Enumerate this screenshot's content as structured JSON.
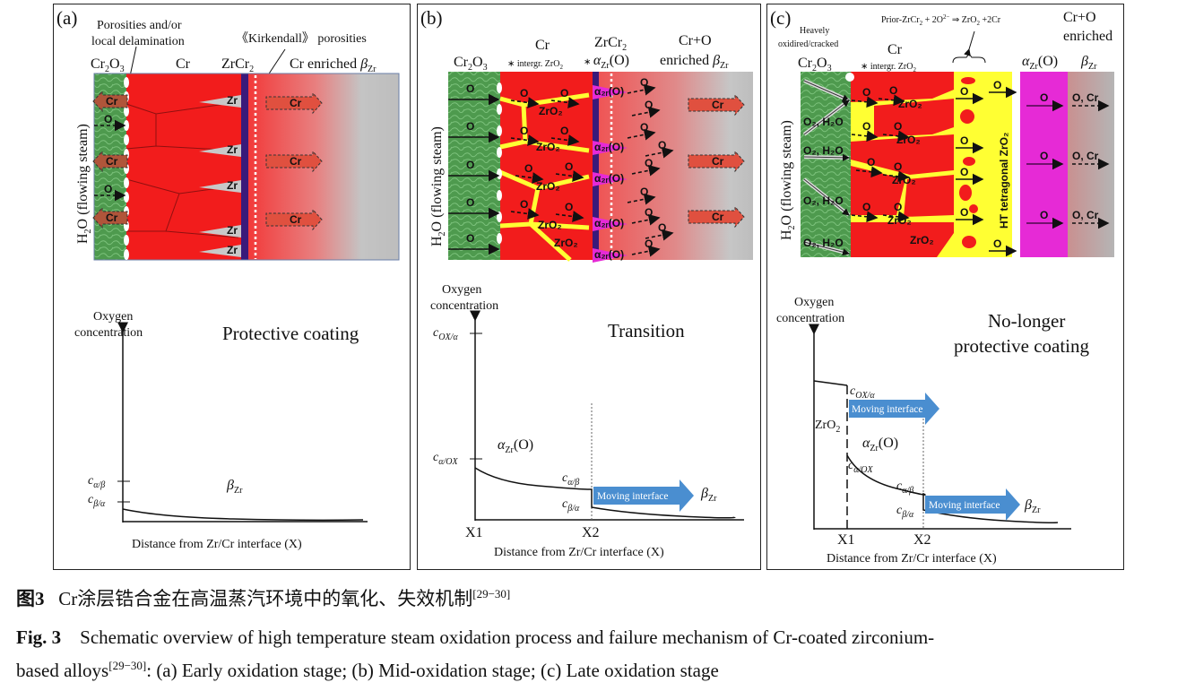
{
  "panels": {
    "a": {
      "tag": "(a)",
      "porosities_1": "Porosities and/or",
      "porosities_2": "local delamination",
      "kirkendall": "《Kirkendall》 porosities",
      "cr2o3": {
        "main": "Cr",
        "s1": "2",
        "m2": "O",
        "s2": "3"
      },
      "cr": "Cr",
      "zrcr2": {
        "main": "ZrCr",
        "sub": "2"
      },
      "enriched": {
        "main": "Cr enriched ",
        "beta": "β",
        "sub": "Zr"
      },
      "steam": {
        "h": "H",
        "sub": "2",
        "rest": "O (flowing steam)"
      },
      "oxygen": "Oxygen",
      "concentration": "concentration",
      "state": "Protective coating",
      "c_ab": {
        "c": "c",
        "sub": "α/β"
      },
      "c_ba": {
        "c": "c",
        "sub": "β/α"
      },
      "beta_zr": {
        "beta": "β",
        "sub": "Zr"
      },
      "xlabel": "Distance from Zr/Cr interface (X)"
    },
    "b": {
      "tag": "(b)",
      "cr2o3": {
        "main": "Cr",
        "s1": "2",
        "m2": "O",
        "s2": "3"
      },
      "cr": "Cr",
      "intergr": {
        "main": "∗ intergr. ZrO",
        "sub": "2"
      },
      "zrcr2": {
        "main": "ZrCr",
        "sub": "2"
      },
      "alpha": {
        "pre": "∗ ",
        "a": "α",
        "sub": "Zr",
        "rest": "(O)"
      },
      "cro": "Cr+O",
      "enriched": {
        "main": "enriched ",
        "beta": "β",
        "sub": "Zr"
      },
      "steam": {
        "h": "H",
        "sub": "2",
        "rest": "O (flowing steam)"
      },
      "oxygen": "Oxygen",
      "concentration": "concentration",
      "state": "Transition",
      "c_oxa": {
        "c": "c",
        "sub": "OX/α"
      },
      "c_aox": {
        "c": "c",
        "sub": "α/OX"
      },
      "alpha_zr": {
        "a": "α",
        "sub": "Zr",
        "rest": "(O)"
      },
      "c_ab": {
        "c": "c",
        "sub": "α/β"
      },
      "c_ba": {
        "c": "c",
        "sub": "β/α"
      },
      "moving": "Moving interface",
      "beta_zr": {
        "beta": "β",
        "sub": "Zr"
      },
      "x1": "X1",
      "x2": "X2",
      "xlabel": "Distance from Zr/Cr interface (X)"
    },
    "c": {
      "tag": "(c)",
      "heavely": "Heavely",
      "oxidired": "oxidired/cracked",
      "cr2o3": {
        "main": "Cr",
        "s1": "2",
        "m2": "O",
        "s2": "3"
      },
      "cr": "Cr",
      "intergr": {
        "main": "∗ intergr. ZrO",
        "sub": "2"
      },
      "reaction": {
        "p1": "Prior-ZrCr",
        "s1": "2",
        "p2": " + 2O",
        "sup": "2−",
        "p3": " ⇒ ZrO",
        "s2": "2",
        "p4": " +2Cr"
      },
      "cro": "Cr+O",
      "enriched": "enriched",
      "alpha": {
        "a": "α",
        "sub": "Zr",
        "rest": "(O)"
      },
      "beta": {
        "beta": "β",
        "sub": "Zr"
      },
      "steam": {
        "h": "H",
        "sub": "2",
        "rest": "O (flowing steam)"
      },
      "ht": "HT tetragonal ZrO₂",
      "oxygen": "Oxygen",
      "concentration": "concentration",
      "state_1": "No-longer",
      "state_2": "protective coating",
      "c_oxa": {
        "c": "c",
        "sub": "OX/α"
      },
      "moving": "Moving interface",
      "zro2": {
        "main": "ZrO",
        "sub": "2"
      },
      "alpha_zr": {
        "a": "α",
        "sub": "Zr",
        "rest": "(O)"
      },
      "c_aox": {
        "c": "c",
        "sub": "α/OX"
      },
      "c_ab": {
        "c": "c",
        "sub": "α/β"
      },
      "c_ba": {
        "c": "c",
        "sub": "β/α"
      },
      "beta_zr": {
        "beta": "β",
        "sub": "Zr"
      },
      "x1": "X1",
      "x2": "X2",
      "xlabel": "Distance from Zr/Cr interface (X)"
    }
  },
  "inlabels": {
    "o": "O",
    "cr": "Cr",
    "zr": "Zr",
    "zro2": "ZrO₂",
    "alpha_o": "α₂ᵣ(O)",
    "o2h2o": "O₂, H₂O",
    "ocr": "O, Cr"
  },
  "colors": {
    "cr2o3": "#4e9a4e",
    "cr": "#f21c1c",
    "zrcr2": "#3a1a7a",
    "alpha": "#e62ad6",
    "ht_zro2": "#ffff33",
    "beta": "#bdbdbd"
  },
  "caption": {
    "cn_label": "图3",
    "cn_text": "Cr涂层锆合金在高温蒸汽环境中的氧化、失效机制",
    "ref": "[29−30]",
    "en_label": "Fig. 3",
    "en_text_1": "Schematic overview of high temperature steam oxidation process and failure mechanism of Cr-coated zirconium-",
    "en_text_2a": "based alloys",
    "en_text_2b": ": (a) Early oxidation stage; (b) Mid-oxidation stage; (c) Late oxidation stage"
  }
}
